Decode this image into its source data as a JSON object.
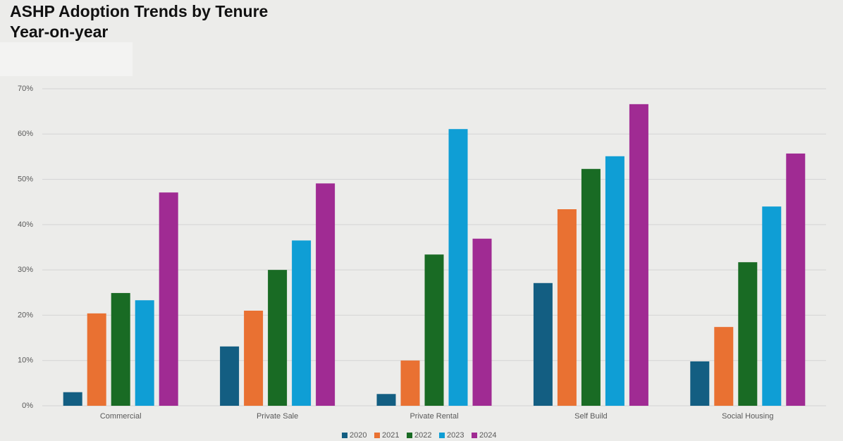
{
  "chart_data": {
    "type": "bar",
    "title": "ASHP Adoption Trends by Tenure",
    "subtitle": "Year-on-year",
    "categories": [
      "Commercial",
      "Private Sale",
      "Private Rental",
      "Self Build",
      "Social Housing"
    ],
    "series": [
      {
        "name": "2020",
        "color": "#135e82",
        "values": [
          3.0,
          13.1,
          2.6,
          27.1,
          9.8
        ]
      },
      {
        "name": "2021",
        "color": "#e97132",
        "values": [
          20.4,
          21.0,
          10.0,
          43.4,
          17.4
        ]
      },
      {
        "name": "2022",
        "color": "#196b24",
        "values": [
          24.9,
          30.0,
          33.4,
          52.3,
          31.7
        ]
      },
      {
        "name": "2023",
        "color": "#0f9ed5",
        "values": [
          23.3,
          36.5,
          61.1,
          55.1,
          44.0
        ]
      },
      {
        "name": "2024",
        "color": "#a02b93",
        "values": [
          47.1,
          49.1,
          36.9,
          66.6,
          55.7
        ]
      }
    ],
    "ylim": [
      0,
      70
    ],
    "yticks": [
      {
        "value": 0,
        "label": "0%"
      },
      {
        "value": 10,
        "label": "10%"
      },
      {
        "value": 20,
        "label": "20%"
      },
      {
        "value": 30,
        "label": "30%"
      },
      {
        "value": 40,
        "label": "40%"
      },
      {
        "value": 50,
        "label": "50%"
      },
      {
        "value": 60,
        "label": "60%"
      },
      {
        "value": 70,
        "label": "70%"
      }
    ],
    "grid": true,
    "legend": "bottom"
  }
}
